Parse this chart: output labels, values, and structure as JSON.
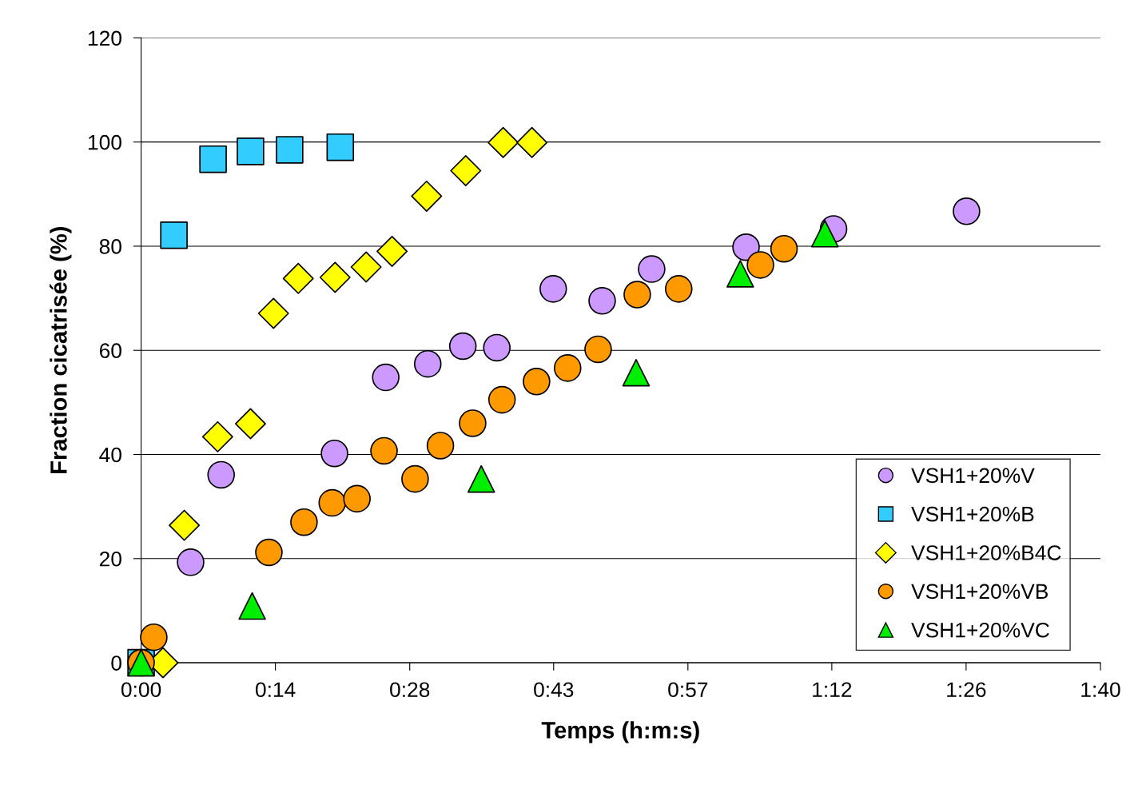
{
  "chart_data": {
    "type": "scatter",
    "xlabel": "Temps (h:m:s)",
    "ylabel": "Fraction cicatrisée (%)",
    "xlim": [
      0,
      1.6667
    ],
    "xticks": [
      {
        "value": 0,
        "label": "0:00"
      },
      {
        "value": 0.2333,
        "label": "0:14"
      },
      {
        "value": 0.4667,
        "label": "0:28"
      },
      {
        "value": 0.7167,
        "label": "0:43"
      },
      {
        "value": 0.95,
        "label": "0:57"
      },
      {
        "value": 1.2,
        "label": "1:12"
      },
      {
        "value": 1.4333,
        "label": "1:26"
      },
      {
        "value": 1.6667,
        "label": "1:40"
      }
    ],
    "ylim": [
      0,
      120
    ],
    "yticks": [
      0,
      20,
      40,
      60,
      80,
      100,
      120
    ],
    "grid": "y",
    "legend": "bottom right",
    "series": [
      {
        "name": "VSH1+20%V",
        "color": "#cc99ff",
        "marker": "circle",
        "x": [
          0.086,
          0.139,
          0.336,
          0.425,
          0.498,
          0.559,
          0.618,
          0.716,
          0.801,
          0.887,
          1.051,
          1.203,
          1.434
        ],
        "values": [
          19.3,
          36.1,
          40.2,
          54.8,
          57.4,
          60.8,
          60.5,
          71.8,
          69.5,
          75.6,
          79.8,
          83.3,
          86.7
        ]
      },
      {
        "name": "VSH1+20%B",
        "color": "#33ccff",
        "marker": "square",
        "x": [
          0,
          0.057,
          0.125,
          0.19,
          0.258,
          0.346
        ],
        "values": [
          0,
          82.1,
          96.7,
          98.2,
          98.5,
          99.0
        ]
      },
      {
        "name": "VSH1+20%B4C",
        "color": "#ffff00",
        "marker": "diamond",
        "x": [
          0.038,
          0.075,
          0.133,
          0.19,
          0.23,
          0.273,
          0.337,
          0.391,
          0.436,
          0.496,
          0.564,
          0.629,
          0.679
        ],
        "values": [
          0,
          26.4,
          43.4,
          45.9,
          67.1,
          73.8,
          74.0,
          76.0,
          79.0,
          89.6,
          94.5,
          99.9,
          99.9
        ]
      },
      {
        "name": "VSH1+20%VB",
        "color": "#ff9900",
        "marker": "circle",
        "x": [
          0,
          0.022,
          0.222,
          0.283,
          0.332,
          0.375,
          0.422,
          0.476,
          0.52,
          0.576,
          0.627,
          0.687,
          0.741,
          0.794,
          0.862,
          0.934,
          1.076,
          1.117
        ],
        "values": [
          0,
          4.9,
          21.2,
          27.0,
          30.7,
          31.5,
          40.7,
          35.3,
          41.7,
          46.0,
          50.5,
          54.0,
          56.6,
          60.2,
          70.7,
          71.8,
          76.4,
          79.5
        ]
      },
      {
        "name": "VSH1+20%VC",
        "color": "#00ee00",
        "marker": "triangle",
        "x": [
          0,
          0.193,
          0.591,
          0.86,
          1.041,
          1.188
        ],
        "values": [
          0,
          10.9,
          35.3,
          55.7,
          74.7,
          82.4
        ]
      }
    ]
  }
}
